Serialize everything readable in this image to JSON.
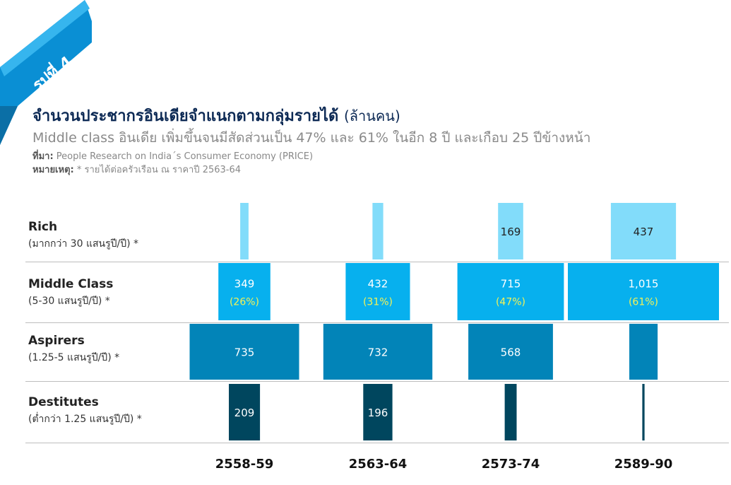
{
  "figure": {
    "badge": "รูปที่ 4"
  },
  "header": {
    "title": "จำนวนประชากรอินเดียจำแนกตามกลุ่มรายได้",
    "title_unit": "(ล้านคน)",
    "subtitle": "Middle class อินเดีย เพิ่มขึ้นจนมีสัดส่วนเป็น 47% และ 61% ในอีก 8 ปี และเกือบ 25 ปีข้างหน้า",
    "source_label": "ที่มา:",
    "source_text": "People Research on India´s Consumer Economy (PRICE)",
    "note_label": "หมายเหตุ:",
    "note_text": "* รายได้ต่อครัวเรือน ณ ราคาปี 2563-64"
  },
  "colors": {
    "rich": "#82dcfa",
    "middle": "#07b0ee",
    "aspirers": "#0284b8",
    "destitutes": "#00465e",
    "ribbon": "#0a8fd4",
    "pct": "#f5f255"
  },
  "chart_data": {
    "type": "bar",
    "categories": [
      "2558-59",
      "2563-64",
      "2573-74",
      "2589-90"
    ],
    "series": [
      {
        "name": "Rich",
        "sublabel": "(มากกว่า 30 แสนรูปี/ปี) *",
        "values": [
          56,
          72,
          169,
          437
        ],
        "labels": [
          "",
          "",
          "169",
          "437"
        ]
      },
      {
        "name": "Middle Class",
        "sublabel": "(5-30 แสนรูปี/ปี) *",
        "values": [
          349,
          432,
          715,
          1015
        ],
        "labels": [
          "349",
          "432",
          "715",
          "1,015"
        ],
        "shares": [
          "(26%)",
          "(31%)",
          "(47%)",
          "(61%)"
        ]
      },
      {
        "name": "Aspirers",
        "sublabel": "(1.25-5 แสนรูปี/ปี) *",
        "values": [
          735,
          732,
          568,
          190
        ],
        "labels": [
          "735",
          "732",
          "568",
          ""
        ]
      },
      {
        "name": "Destitutes",
        "sublabel": "(ต่ำกว่า 1.25 แสนรูปี/ปี) *",
        "values": [
          209,
          196,
          80,
          15
        ],
        "labels": [
          "209",
          "196",
          "",
          ""
        ]
      }
    ]
  }
}
